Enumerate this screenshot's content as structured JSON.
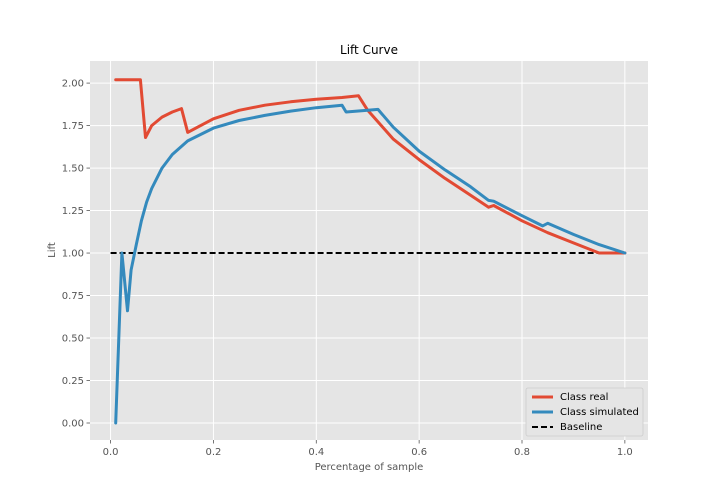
{
  "chart_data": {
    "type": "line",
    "title": "Lift Curve",
    "xlabel": "Percentage of sample",
    "ylabel": "Lift",
    "xlim": [
      -0.04,
      1.045
    ],
    "ylim": [
      -0.1,
      2.13
    ],
    "xticks": [
      0.0,
      0.2,
      0.4,
      0.6,
      0.8,
      1.0
    ],
    "xtick_labels": [
      "0.0",
      "0.2",
      "0.4",
      "0.6",
      "0.8",
      "1.0"
    ],
    "yticks": [
      0.0,
      0.25,
      0.5,
      0.75,
      1.0,
      1.25,
      1.5,
      1.75,
      2.0
    ],
    "ytick_labels": [
      "0.00",
      "0.25",
      "0.50",
      "0.75",
      "1.00",
      "1.25",
      "1.50",
      "1.75",
      "2.00"
    ],
    "grid": true,
    "legend_position": "lower-right",
    "series": [
      {
        "name": "Class real",
        "color": "#E24A33",
        "style": "solid",
        "x": [
          0.01,
          0.02,
          0.03,
          0.04,
          0.05,
          0.058,
          0.068,
          0.08,
          0.1,
          0.12,
          0.138,
          0.15,
          0.2,
          0.25,
          0.3,
          0.35,
          0.4,
          0.45,
          0.482,
          0.5,
          0.55,
          0.6,
          0.65,
          0.7,
          0.735,
          0.745,
          0.8,
          0.85,
          0.9,
          0.95,
          0.96,
          1.0
        ],
        "y": [
          2.02,
          2.02,
          2.02,
          2.02,
          2.02,
          2.02,
          1.68,
          1.75,
          1.8,
          1.83,
          1.85,
          1.71,
          1.79,
          1.84,
          1.87,
          1.89,
          1.905,
          1.915,
          1.925,
          1.84,
          1.67,
          1.55,
          1.44,
          1.34,
          1.27,
          1.28,
          1.19,
          1.12,
          1.06,
          1.0,
          1.0,
          1.0
        ]
      },
      {
        "name": "Class simulated",
        "color": "#348ABD",
        "style": "solid",
        "x": [
          0.01,
          0.022,
          0.033,
          0.04,
          0.05,
          0.06,
          0.07,
          0.08,
          0.1,
          0.12,
          0.15,
          0.2,
          0.25,
          0.3,
          0.35,
          0.4,
          0.45,
          0.458,
          0.5,
          0.52,
          0.55,
          0.6,
          0.65,
          0.7,
          0.735,
          0.745,
          0.8,
          0.84,
          0.85,
          0.9,
          0.95,
          1.0
        ],
        "y": [
          0.0,
          1.0,
          0.66,
          0.9,
          1.05,
          1.19,
          1.3,
          1.38,
          1.5,
          1.58,
          1.66,
          1.735,
          1.78,
          1.81,
          1.835,
          1.855,
          1.87,
          1.83,
          1.84,
          1.845,
          1.74,
          1.6,
          1.49,
          1.39,
          1.31,
          1.305,
          1.22,
          1.16,
          1.175,
          1.11,
          1.05,
          1.0
        ]
      },
      {
        "name": "Baseline",
        "color": "#000000",
        "style": "dashed",
        "x": [
          0.0,
          1.0
        ],
        "y": [
          1.0,
          1.0
        ]
      }
    ]
  }
}
